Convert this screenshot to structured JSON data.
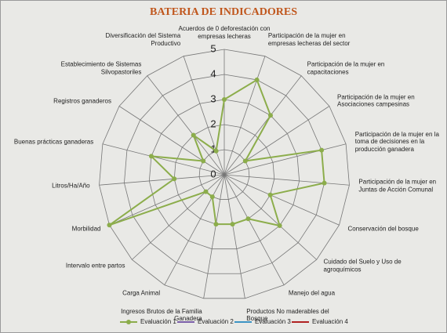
{
  "chart_data": {
    "type": "radar",
    "title": "BATERIA DE INDICADORES",
    "categories": [
      "Acuerdos de 0 deforestación con empresas lecheras",
      "Participación de la mujer en empresas lecheras del sector",
      "Participación de la mujer en capacitaciones",
      "Participación de la mujer en Asociaciones campesinas",
      "Participación de la mujer en la toma de decisiones en la producción ganadera",
      "Participación de la mujer en Juntas de Acción Comunal",
      "Conservación del bosque",
      "Cuidado del Suelo y Uso de agroquímicos",
      "Manejo del agua",
      "Productos No maderables del Bosque",
      "Ingresos Brutos de la Familia Ganadera",
      "Carga Animal",
      "Intervalo entre partos",
      "Morbilidad",
      "Litros/Ha/Año",
      "Buenas prácticas ganaderas",
      "Registros ganaderos",
      "Establecimiento de Sistemas Silvopastoriles",
      "Diversificación del Sistema Productivo"
    ],
    "series": [
      {
        "name": "Evaluación 1",
        "color": "#8cad4b",
        "values": [
          3,
          4,
          3,
          1,
          4,
          4,
          2,
          3,
          2,
          2,
          2,
          1,
          1,
          5,
          2,
          3,
          1,
          2,
          1
        ]
      },
      {
        "name": "Evaluación 2",
        "color": "#7b5fa8",
        "values": [
          null,
          null,
          null,
          null,
          null,
          null,
          null,
          null,
          null,
          null,
          null,
          null,
          null,
          null,
          null,
          null,
          null,
          null,
          null
        ]
      },
      {
        "name": "Evaluación 3",
        "color": "#3d94c4",
        "values": [
          null,
          null,
          null,
          null,
          null,
          null,
          null,
          null,
          null,
          null,
          null,
          null,
          null,
          null,
          null,
          null,
          null,
          null,
          null
        ]
      },
      {
        "name": "Evaluación 4",
        "color": "#b02222",
        "values": [
          null,
          null,
          null,
          null,
          null,
          null,
          null,
          null,
          null,
          null,
          null,
          null,
          null,
          null,
          null,
          null,
          null,
          null,
          null
        ]
      }
    ],
    "rlim": [
      0,
      5
    ],
    "rticks": [
      0,
      1,
      2,
      3,
      4,
      5
    ],
    "grid": true
  }
}
